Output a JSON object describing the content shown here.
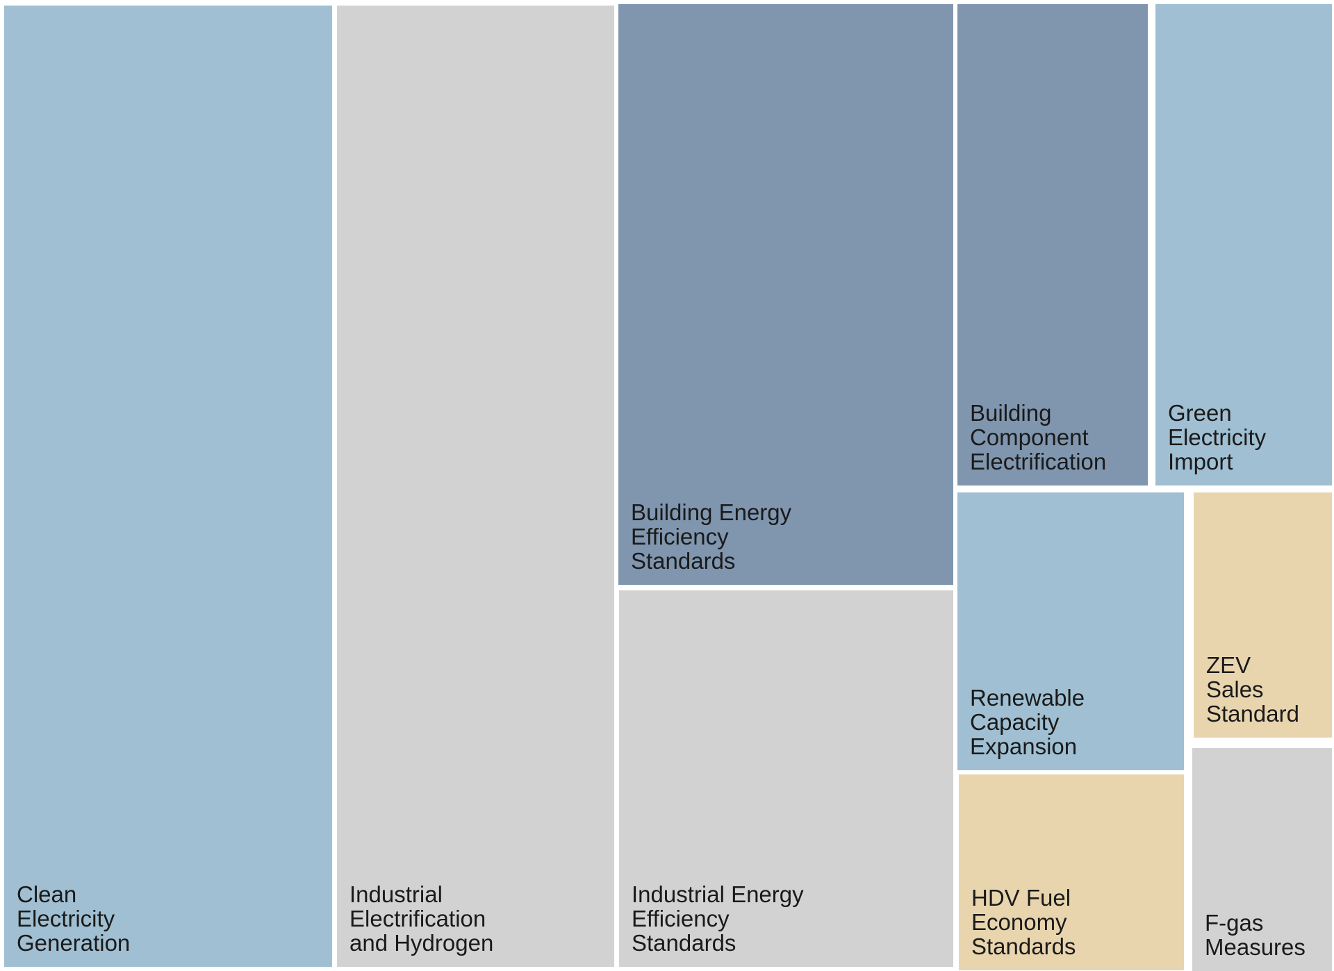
{
  "chart_data": {
    "type": "treemap",
    "title": "",
    "colors": {
      "light-blue": "#a0bfd2",
      "slate-blue": "#8096af",
      "light-gray": "#d2d2d2",
      "tan": "#e8d5ae"
    },
    "tiles": [
      {
        "label_lines": [
          "Clean",
          "Electricity",
          "Generation"
        ],
        "value": 436,
        "color": "light-blue"
      },
      {
        "label_lines": [
          "Industrial",
          "Electrification",
          "and Hydrogen"
        ],
        "value": 370,
        "color": "light-gray"
      },
      {
        "label_lines": [
          "Building Energy",
          "Efficiency",
          "Standards"
        ],
        "value": 269,
        "color": "slate-blue"
      },
      {
        "label_lines": [
          "Industrial Energy",
          "Efficiency",
          "Standards"
        ],
        "value": 176,
        "color": "light-gray"
      },
      {
        "label_lines": [
          "Building",
          "Component",
          "Electrification"
        ],
        "value": 127,
        "color": "slate-blue"
      },
      {
        "label_lines": [
          "Green",
          "Electricity",
          "Import"
        ],
        "value": 119,
        "color": "light-blue"
      },
      {
        "label_lines": [
          "Renewable",
          "Capacity",
          "Expansion"
        ],
        "value": 87,
        "color": "light-blue"
      },
      {
        "label_lines": [
          "HDV Fuel",
          "Economy",
          "Standards"
        ],
        "value": 60,
        "color": "tan"
      },
      {
        "label_lines": [
          "ZEV",
          "Sales",
          "Standard"
        ],
        "value": 48,
        "color": "tan"
      },
      {
        "label_lines": [
          "F-gas",
          "Measures"
        ],
        "value": 40,
        "color": "light-gray"
      }
    ]
  }
}
